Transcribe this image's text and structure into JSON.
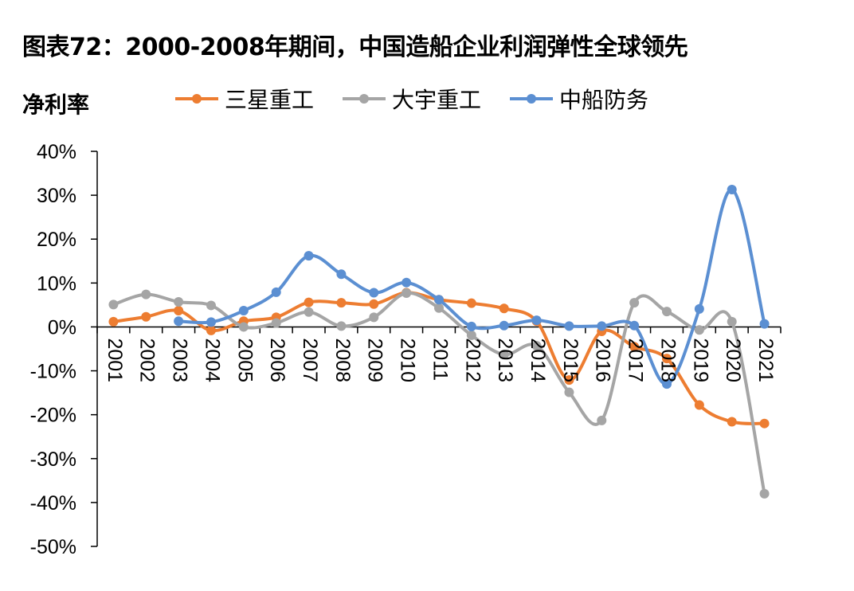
{
  "chart_data": {
    "type": "line",
    "title": "图表72：2000-2008年期间，中国造船企业利润弹性全球领先",
    "ylabel": "净利率",
    "xlabel": "",
    "ylim": [
      -50,
      40
    ],
    "y_ticks": [
      40,
      30,
      20,
      10,
      0,
      -10,
      -20,
      -30,
      -40,
      -50
    ],
    "y_tick_labels": [
      "40%",
      "30%",
      "20%",
      "10%",
      "0%",
      "-10%",
      "-20%",
      "-30%",
      "-40%",
      "-50%"
    ],
    "categories": [
      "2001",
      "2002",
      "2003",
      "2004",
      "2005",
      "2006",
      "2007",
      "2008",
      "2009",
      "2010",
      "2011",
      "2012",
      "2013",
      "2014",
      "2015",
      "2016",
      "2017",
      "2018",
      "2019",
      "2020",
      "2021"
    ],
    "legend_position": "top",
    "grid": false,
    "series": [
      {
        "name": "三星重工",
        "color": "#ED7D31",
        "values": [
          1.2,
          2.3,
          3.7,
          -0.8,
          1.3,
          2.2,
          5.6,
          5.5,
          5.2,
          7.8,
          6.2,
          5.4,
          4.2,
          1.3,
          -12.1,
          -1.0,
          -4.5,
          -7.2,
          -17.8,
          -21.6,
          -22.0
        ]
      },
      {
        "name": "大宇重工",
        "color": "#A5A5A5",
        "values": [
          5.1,
          7.4,
          5.7,
          4.9,
          0.0,
          0.9,
          3.4,
          0.2,
          2.2,
          7.7,
          4.3,
          -1.9,
          -6.3,
          -4.3,
          -14.9,
          -21.3,
          5.5,
          3.5,
          -0.7,
          1.2,
          -38.0
        ]
      },
      {
        "name": "中船防务",
        "color": "#5B8FD2",
        "values": [
          null,
          null,
          1.3,
          1.1,
          3.7,
          7.9,
          16.2,
          12.0,
          7.8,
          10.1,
          6.2,
          0.1,
          0.3,
          1.5,
          0.2,
          0.2,
          0.3,
          -13.0,
          4.1,
          31.3,
          0.7
        ]
      }
    ]
  }
}
